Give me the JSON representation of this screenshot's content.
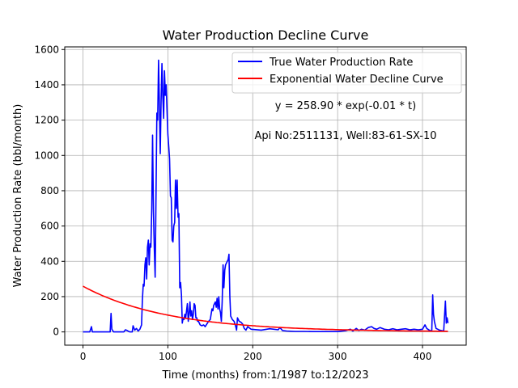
{
  "chart_data": {
    "type": "line",
    "title": "Water Production Decline Curve",
    "xlabel": "Time (months) from:1/1987 to:12/2023",
    "ylabel": "Water Production Rate (bbl/month)",
    "xlim": [
      -21.5,
      451.5
    ],
    "ylim": [
      -75,
      1615
    ],
    "xticks": [
      0,
      100,
      200,
      300,
      400
    ],
    "yticks": [
      0,
      200,
      400,
      600,
      800,
      1000,
      1200,
      1400,
      1600
    ],
    "grid": true,
    "legend_position": "top-right",
    "annotations": [
      "y = 258.90 * exp(-0.01 * t)",
      "Api No:2511131, Well:83-61-SX-10"
    ],
    "series": [
      {
        "name": "True Water Production Rate",
        "color": "#0000ff",
        "points": [
          [
            0,
            0
          ],
          [
            8,
            0
          ],
          [
            10,
            30
          ],
          [
            11,
            0
          ],
          [
            32,
            0
          ],
          [
            33,
            105
          ],
          [
            34,
            15
          ],
          [
            36,
            0
          ],
          [
            40,
            0
          ],
          [
            48,
            0
          ],
          [
            50,
            12
          ],
          [
            52,
            8
          ],
          [
            55,
            0
          ],
          [
            58,
            0
          ],
          [
            59,
            35
          ],
          [
            61,
            10
          ],
          [
            63,
            20
          ],
          [
            65,
            5
          ],
          [
            67,
            15
          ],
          [
            69,
            40
          ],
          [
            70,
            180
          ],
          [
            71,
            270
          ],
          [
            72,
            260
          ],
          [
            73,
            380
          ],
          [
            74,
            420
          ],
          [
            75,
            300
          ],
          [
            76,
            480
          ],
          [
            77,
            520
          ],
          [
            78,
            380
          ],
          [
            79,
            500
          ],
          [
            80,
            480
          ],
          [
            81,
            700
          ],
          [
            82,
            1115
          ],
          [
            83,
            680
          ],
          [
            84,
            480
          ],
          [
            85,
            310
          ],
          [
            86,
            750
          ],
          [
            87,
            1240
          ],
          [
            88,
            1200
          ],
          [
            89,
            1540
          ],
          [
            90,
            1300
          ],
          [
            91,
            1010
          ],
          [
            92,
            1300
          ],
          [
            93,
            1520
          ],
          [
            94,
            1340
          ],
          [
            95,
            1210
          ],
          [
            96,
            1480
          ],
          [
            97,
            1340
          ],
          [
            98,
            1400
          ],
          [
            99,
            1250
          ],
          [
            100,
            1120
          ],
          [
            101,
            1050
          ],
          [
            102,
            980
          ],
          [
            103,
            770
          ],
          [
            104,
            760
          ],
          [
            105,
            520
          ],
          [
            106,
            510
          ],
          [
            107,
            600
          ],
          [
            108,
            620
          ],
          [
            109,
            860
          ],
          [
            110,
            700
          ],
          [
            111,
            860
          ],
          [
            112,
            650
          ],
          [
            113,
            670
          ],
          [
            114,
            250
          ],
          [
            115,
            280
          ],
          [
            116,
            210
          ],
          [
            117,
            50
          ],
          [
            118,
            80
          ],
          [
            119,
            70
          ],
          [
            120,
            100
          ],
          [
            121,
            80
          ],
          [
            122,
            120
          ],
          [
            123,
            160
          ],
          [
            124,
            60
          ],
          [
            125,
            100
          ],
          [
            126,
            170
          ],
          [
            127,
            90
          ],
          [
            128,
            120
          ],
          [
            129,
            70
          ],
          [
            130,
            100
          ],
          [
            131,
            160
          ],
          [
            132,
            150
          ],
          [
            133,
            80
          ],
          [
            134,
            80
          ],
          [
            135,
            60
          ],
          [
            136,
            60
          ],
          [
            138,
            40
          ],
          [
            140,
            35
          ],
          [
            142,
            40
          ],
          [
            144,
            30
          ],
          [
            146,
            45
          ],
          [
            148,
            60
          ],
          [
            150,
            70
          ],
          [
            152,
            130
          ],
          [
            153,
            120
          ],
          [
            154,
            150
          ],
          [
            156,
            170
          ],
          [
            157,
            140
          ],
          [
            158,
            190
          ],
          [
            159,
            130
          ],
          [
            160,
            200
          ],
          [
            161,
            130
          ],
          [
            162,
            110
          ],
          [
            163,
            60
          ],
          [
            164,
            170
          ],
          [
            165,
            380
          ],
          [
            166,
            250
          ],
          [
            167,
            350
          ],
          [
            168,
            380
          ],
          [
            170,
            400
          ],
          [
            171,
            410
          ],
          [
            172,
            440
          ],
          [
            173,
            200
          ],
          [
            174,
            90
          ],
          [
            176,
            70
          ],
          [
            178,
            60
          ],
          [
            180,
            30
          ],
          [
            181,
            10
          ],
          [
            182,
            80
          ],
          [
            184,
            60
          ],
          [
            186,
            55
          ],
          [
            188,
            45
          ],
          [
            190,
            20
          ],
          [
            192,
            10
          ],
          [
            194,
            30
          ],
          [
            198,
            15
          ],
          [
            210,
            10
          ],
          [
            220,
            18
          ],
          [
            230,
            12
          ],
          [
            232,
            25
          ],
          [
            235,
            8
          ],
          [
            240,
            5
          ],
          [
            250,
            3
          ],
          [
            260,
            3
          ],
          [
            270,
            2
          ],
          [
            280,
            2
          ],
          [
            290,
            2
          ],
          [
            300,
            2
          ],
          [
            310,
            8
          ],
          [
            315,
            15
          ],
          [
            318,
            5
          ],
          [
            322,
            20
          ],
          [
            325,
            8
          ],
          [
            328,
            15
          ],
          [
            332,
            10
          ],
          [
            336,
            25
          ],
          [
            340,
            30
          ],
          [
            343,
            20
          ],
          [
            346,
            15
          ],
          [
            350,
            25
          ],
          [
            355,
            15
          ],
          [
            360,
            12
          ],
          [
            365,
            18
          ],
          [
            370,
            12
          ],
          [
            375,
            15
          ],
          [
            380,
            18
          ],
          [
            385,
            12
          ],
          [
            390,
            15
          ],
          [
            395,
            12
          ],
          [
            400,
            15
          ],
          [
            403,
            40
          ],
          [
            405,
            20
          ],
          [
            408,
            10
          ],
          [
            410,
            5
          ],
          [
            411,
            10
          ],
          [
            412,
            210
          ],
          [
            413,
            100
          ],
          [
            414,
            60
          ],
          [
            415,
            40
          ],
          [
            416,
            20
          ],
          [
            418,
            15
          ],
          [
            420,
            10
          ],
          [
            425,
            5
          ],
          [
            427,
            175
          ],
          [
            428,
            50
          ],
          [
            429,
            80
          ],
          [
            430,
            50
          ]
        ]
      },
      {
        "name": "Exponential Water Decline Curve",
        "color": "#ff0000",
        "amplitude": 258.9,
        "rate": 0.01,
        "t_range": [
          0,
          430
        ]
      }
    ]
  }
}
